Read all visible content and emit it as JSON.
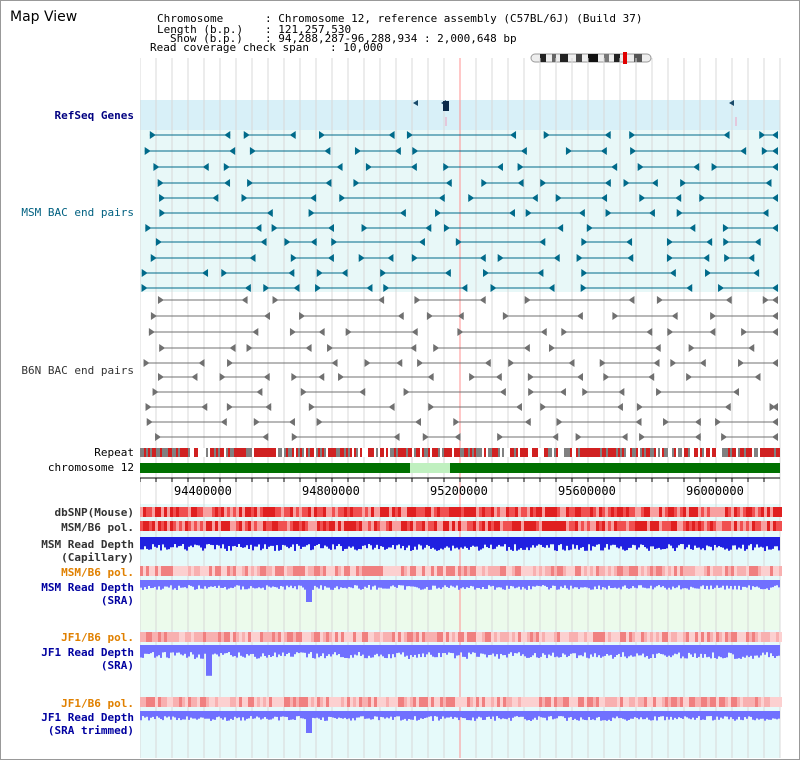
{
  "app": {
    "title": "Map View"
  },
  "info": {
    "chromosome": {
      "key": "Chromosome",
      "value": ": Chromosome 12, reference assembly (C57BL/6J) (Build 37)"
    },
    "length": {
      "key": "Length (b.p.)",
      "value": ": 121,257,530"
    },
    "show": {
      "key": "Show (b.p.)",
      "value": ": 94,288,287-96,288,934 : 2,000,648 bp"
    },
    "coverage": {
      "key": "Read coverage check span",
      "value": ": 10,000"
    }
  },
  "tracks": {
    "refseq": "RefSeq Genes",
    "msm_bac": "MSM BAC end pairs",
    "b6n_bac": "B6N BAC end pairs",
    "repeat": "Repeat",
    "chromosome": "chromosome 12",
    "dbsnp": "dbSNP(Mouse)",
    "msm_b6_pol_1": "MSM/B6 pol.",
    "msm_read_depth_cap_1": "MSM Read Depth",
    "msm_read_depth_cap_2": "(Capillary)",
    "msm_b6_pol_2": "MSM/B6 pol.",
    "msm_read_depth_sra_1": "MSM Read Depth",
    "msm_read_depth_sra_2": "(SRA)",
    "jf1_b6_pol_1": "JF1/B6 pol.",
    "jf1_read_depth_sra_1": "JF1 Read Depth",
    "jf1_read_depth_sra_2": "(SRA)",
    "jf1_b6_pol_2": "JF1/B6 pol.",
    "jf1_read_depth_trim_1": "JF1 Read Depth",
    "jf1_read_depth_trim_2": "(SRA trimmed)"
  },
  "axis": {
    "ticks": [
      "94400000",
      "94800000",
      "95200000",
      "95600000",
      "96000000"
    ]
  },
  "colors": {
    "refseq_bg": "#d8f0f8",
    "bac_bg": "#e8f8f8",
    "msm_feature": "#006a8a",
    "b6n_feature": "#707070",
    "chromosome_bar": "#007000",
    "chromosome_gap": "#c0f0c0",
    "snp_red": "#e83030",
    "depth_blue": "#2020e0",
    "depth_light": "#7070ff",
    "highlight": "#ff9090"
  }
}
